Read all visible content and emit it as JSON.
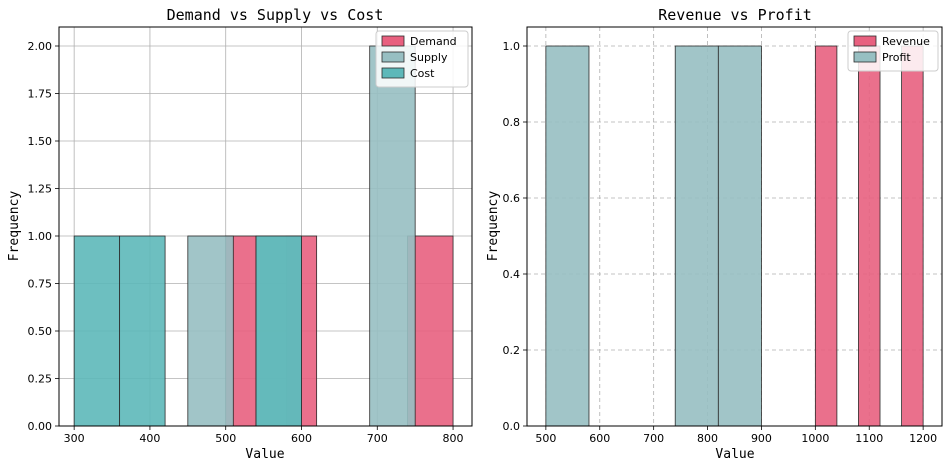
{
  "chart_data": [
    {
      "type": "bar",
      "title": "Demand vs Supply vs Cost",
      "xlabel": "Value",
      "ylabel": "Frequency",
      "xlim": [
        280,
        825
      ],
      "ylim": [
        0,
        2.1
      ],
      "xticks": [
        "300",
        "400",
        "500",
        "600",
        "700",
        "800"
      ],
      "yticks": [
        "0.00",
        "0.25",
        "0.50",
        "0.75",
        "1.00",
        "1.25",
        "1.50",
        "1.75",
        "2.00"
      ],
      "grid": true,
      "grid_style": "solid",
      "legend_position": "upper right",
      "series": [
        {
          "name": "Demand",
          "color": "#e8607f",
          "bins": [
            {
              "x0": 500,
              "x1": 540,
              "count": 1
            },
            {
              "x0": 580,
              "x1": 620,
              "count": 1
            },
            {
              "x0": 740,
              "x1": 800,
              "count": 1
            }
          ]
        },
        {
          "name": "Supply",
          "color": "#97bfc2",
          "bins": [
            {
              "x0": 450,
              "x1": 510,
              "count": 1
            },
            {
              "x0": 540,
              "x1": 600,
              "count": 1
            },
            {
              "x0": 690,
              "x1": 750,
              "count": 2
            }
          ]
        },
        {
          "name": "Cost",
          "color": "#5db8b9",
          "bins": [
            {
              "x0": 300,
              "x1": 360,
              "count": 1
            },
            {
              "x0": 360,
              "x1": 420,
              "count": 1
            },
            {
              "x0": 540,
              "x1": 600,
              "count": 1
            }
          ]
        }
      ]
    },
    {
      "type": "bar",
      "title": "Revenue vs Profit",
      "xlabel": "Value",
      "ylabel": "Frequency",
      "xlim": [
        465,
        1235
      ],
      "ylim": [
        0,
        1.05
      ],
      "xticks": [
        "500",
        "600",
        "700",
        "800",
        "900",
        "1000",
        "1100",
        "1200"
      ],
      "yticks": [
        "0.0",
        "0.2",
        "0.4",
        "0.6",
        "0.8",
        "1.0"
      ],
      "grid": true,
      "grid_style": "dashed",
      "legend_position": "upper right",
      "series": [
        {
          "name": "Revenue",
          "color": "#e8607f",
          "bins": [
            {
              "x0": 1000,
              "x1": 1040,
              "count": 1
            },
            {
              "x0": 1080,
              "x1": 1120,
              "count": 1
            },
            {
              "x0": 1160,
              "x1": 1200,
              "count": 1
            }
          ]
        },
        {
          "name": "Profit",
          "color": "#97bfc2",
          "bins": [
            {
              "x0": 500,
              "x1": 580,
              "count": 1
            },
            {
              "x0": 740,
              "x1": 820,
              "count": 1
            },
            {
              "x0": 820,
              "x1": 900,
              "count": 1
            }
          ]
        }
      ]
    }
  ]
}
